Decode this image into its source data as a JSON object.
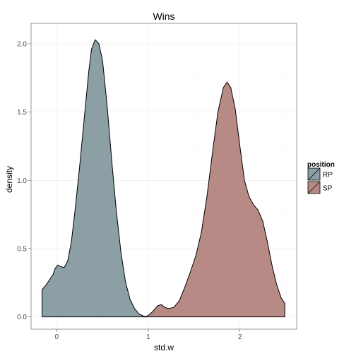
{
  "chart_data": {
    "type": "area",
    "title": "Wins",
    "xlabel": "std.w",
    "ylabel": "density",
    "xlim": [
      -0.28,
      2.62
    ],
    "ylim": [
      -0.09,
      2.15
    ],
    "x_ticks": [
      0,
      1,
      2
    ],
    "y_ticks": [
      0.0,
      0.5,
      1.0,
      1.5,
      2.0
    ],
    "x_tick_labels": [
      "0",
      "1",
      "2"
    ],
    "y_tick_labels": [
      "0.0",
      "0.5",
      "1.0",
      "1.5",
      "2.0"
    ],
    "grid": true,
    "legend": {
      "title": "position",
      "placement": "right"
    },
    "series": [
      {
        "name": "RP",
        "color": "#8b9fa5",
        "points": [
          [
            -0.16,
            0.2
          ],
          [
            -0.12,
            0.23
          ],
          [
            -0.08,
            0.27
          ],
          [
            -0.04,
            0.31
          ],
          [
            -0.02,
            0.35
          ],
          [
            0.01,
            0.38
          ],
          [
            0.04,
            0.37
          ],
          [
            0.08,
            0.36
          ],
          [
            0.12,
            0.41
          ],
          [
            0.16,
            0.55
          ],
          [
            0.2,
            0.78
          ],
          [
            0.25,
            1.1
          ],
          [
            0.3,
            1.45
          ],
          [
            0.35,
            1.8
          ],
          [
            0.38,
            1.96
          ],
          [
            0.42,
            2.03
          ],
          [
            0.46,
            2.0
          ],
          [
            0.5,
            1.88
          ],
          [
            0.55,
            1.55
          ],
          [
            0.6,
            1.15
          ],
          [
            0.65,
            0.78
          ],
          [
            0.7,
            0.48
          ],
          [
            0.75,
            0.26
          ],
          [
            0.8,
            0.13
          ],
          [
            0.85,
            0.06
          ],
          [
            0.9,
            0.02
          ],
          [
            0.95,
            0.005
          ],
          [
            0.98,
            0.0
          ]
        ]
      },
      {
        "name": "SP",
        "color": "#b88a85",
        "points": [
          [
            0.96,
            0.0
          ],
          [
            1.0,
            0.01
          ],
          [
            1.05,
            0.04
          ],
          [
            1.1,
            0.08
          ],
          [
            1.14,
            0.09
          ],
          [
            1.18,
            0.07
          ],
          [
            1.22,
            0.06
          ],
          [
            1.28,
            0.07
          ],
          [
            1.34,
            0.12
          ],
          [
            1.4,
            0.22
          ],
          [
            1.46,
            0.33
          ],
          [
            1.52,
            0.45
          ],
          [
            1.58,
            0.62
          ],
          [
            1.64,
            0.88
          ],
          [
            1.7,
            1.2
          ],
          [
            1.76,
            1.5
          ],
          [
            1.82,
            1.68
          ],
          [
            1.86,
            1.72
          ],
          [
            1.9,
            1.68
          ],
          [
            1.95,
            1.52
          ],
          [
            2.0,
            1.25
          ],
          [
            2.05,
            1.0
          ],
          [
            2.1,
            0.88
          ],
          [
            2.15,
            0.82
          ],
          [
            2.2,
            0.78
          ],
          [
            2.25,
            0.7
          ],
          [
            2.3,
            0.55
          ],
          [
            2.35,
            0.38
          ],
          [
            2.4,
            0.24
          ],
          [
            2.45,
            0.14
          ],
          [
            2.49,
            0.1
          ]
        ]
      }
    ]
  }
}
